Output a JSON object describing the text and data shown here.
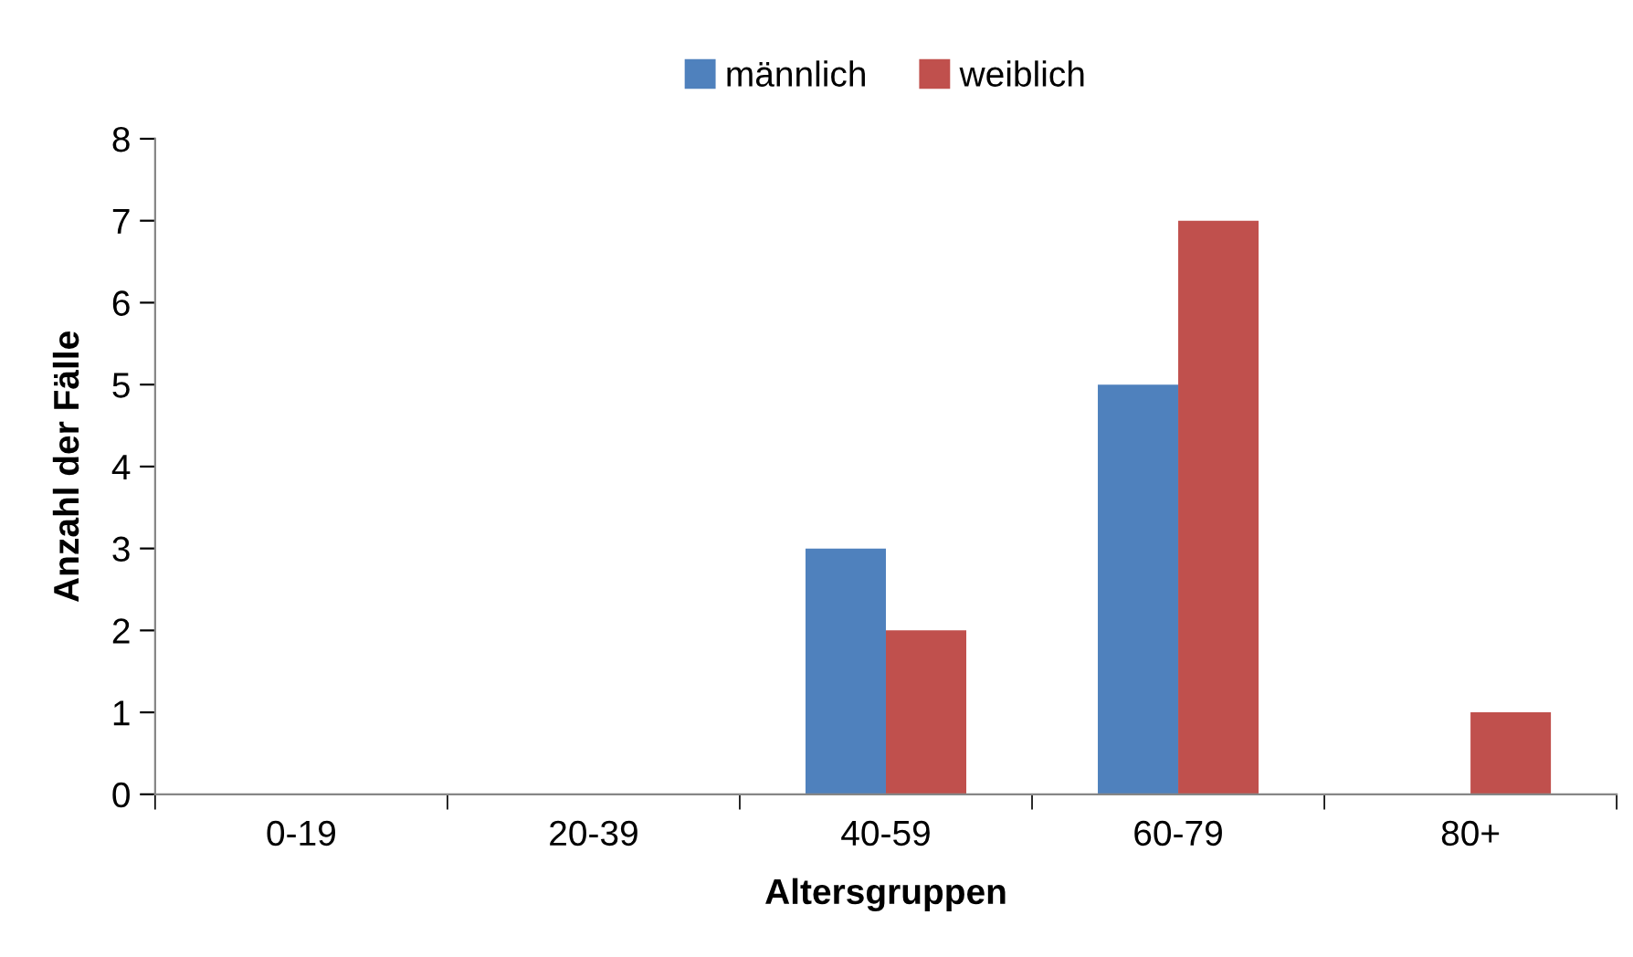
{
  "chart_data": {
    "type": "bar",
    "xlabel": "Altersgruppen",
    "ylabel": "Anzahl der Fälle",
    "categories": [
      "0-19",
      "20-39",
      "40-59",
      "60-79",
      "80+"
    ],
    "series": [
      {
        "name": "männlich",
        "color": "#4f81bd",
        "values": [
          0,
          0,
          3,
          5,
          0
        ]
      },
      {
        "name": "weiblich",
        "color": "#c0504d",
        "values": [
          0,
          0,
          2,
          7,
          1
        ]
      }
    ],
    "ylim": [
      0,
      8
    ],
    "yticks": [
      0,
      1,
      2,
      3,
      4,
      5,
      6,
      7,
      8
    ],
    "grid": false,
    "legend": "top"
  }
}
